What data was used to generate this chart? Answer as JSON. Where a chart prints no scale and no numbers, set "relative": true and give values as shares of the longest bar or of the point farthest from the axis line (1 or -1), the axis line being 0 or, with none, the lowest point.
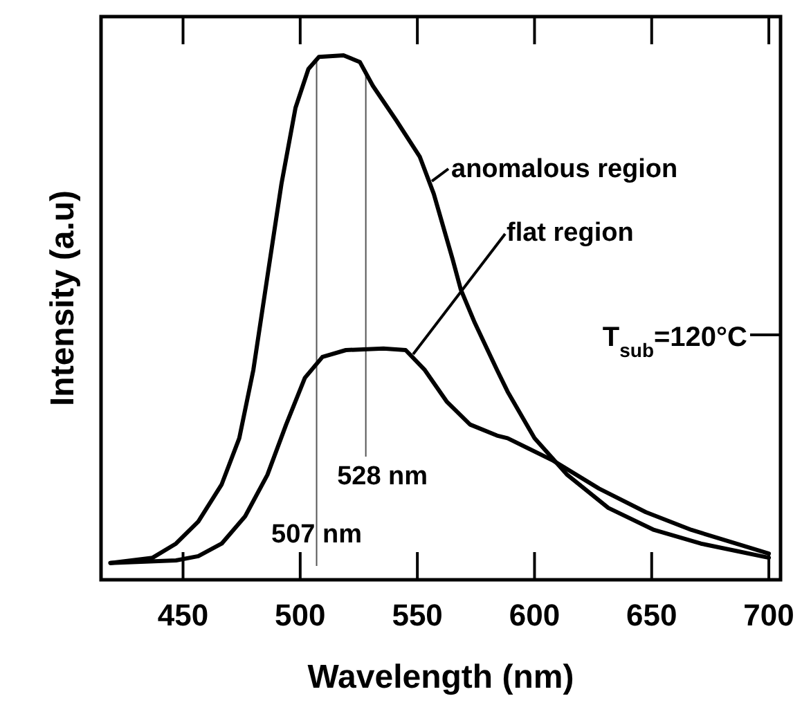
{
  "chart_data": {
    "type": "line",
    "xlabel": "Wavelength (nm)",
    "ylabel": "Intensity (a.u)",
    "relative": true,
    "tick_labels": "x",
    "xlim": [
      415,
      705
    ],
    "xticks": [
      450,
      500,
      550,
      600,
      650,
      700
    ],
    "series": [
      {
        "color": "#000000",
        "x": [
          419,
          437,
          447,
          456.5,
          466.5,
          474,
          480,
          486,
          492,
          498,
          503.5,
          508,
          518.5,
          525.5,
          531,
          541,
          551,
          557,
          565,
          568.5,
          574.5,
          584,
          588.5,
          600,
          614,
          631.5,
          651,
          671,
          686,
          700
        ],
        "values": [
          0.032,
          0.042,
          0.069,
          0.111,
          0.182,
          0.27,
          0.4,
          0.578,
          0.755,
          0.9,
          0.974,
          0.997,
          1.0,
          0.987,
          0.942,
          0.876,
          0.807,
          0.736,
          0.612,
          0.554,
          0.49,
          0.4,
          0.359,
          0.27,
          0.2,
          0.137,
          0.095,
          0.069,
          0.055,
          0.042
        ]
      },
      {
        "color": "#000000",
        "x": [
          419,
          447,
          456.5,
          466.5,
          476.5,
          486,
          494,
          502,
          509.5,
          519.5,
          535.5,
          545,
          553,
          562.5,
          572.5,
          584,
          588.5,
          608,
          627.5,
          647.5,
          667,
          686,
          700
        ],
        "values": [
          0.032,
          0.037,
          0.045,
          0.069,
          0.121,
          0.2,
          0.296,
          0.385,
          0.425,
          0.438,
          0.441,
          0.438,
          0.401,
          0.34,
          0.296,
          0.275,
          0.27,
          0.227,
          0.174,
          0.129,
          0.095,
          0.069,
          0.05
        ]
      }
    ],
    "ref_lines": [
      {
        "axis": "x",
        "value": 507,
        "label": "507 nm",
        "color": "#555555"
      },
      {
        "axis": "x",
        "value": 528,
        "label": "528 nm",
        "color": "#555555"
      }
    ],
    "annotations": [
      {
        "text": "anomalous region",
        "x": 555,
        "y": 0.76
      },
      {
        "text": "flat region",
        "x": 547,
        "y": 0.43
      },
      "T$_{sub}$=120°C"
    ]
  }
}
